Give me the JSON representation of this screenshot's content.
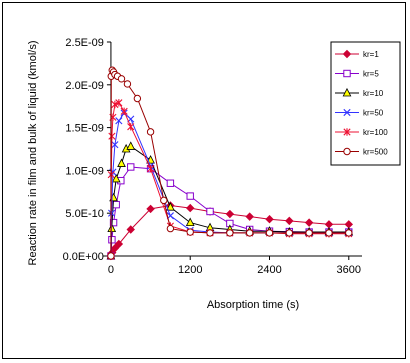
{
  "chart_data": {
    "type": "line",
    "title": "",
    "xlabel": "Absorption time (s)",
    "ylabel": "Reaction rate in film and bulk of liquid (kmol/s)",
    "xlim": [
      -120,
      3800
    ],
    "ylim": [
      0,
      2.5e-09
    ],
    "xticks": [
      0,
      1200,
      2400,
      3600
    ],
    "xtick_labels": [
      "0",
      "1200",
      "2400",
      "3600"
    ],
    "yticks": [
      0,
      5e-10,
      1e-09,
      1.5e-09,
      2e-09,
      2.5e-09
    ],
    "ytick_labels": [
      "0.0E+00",
      "5.0E-10",
      "1.0E-09",
      "1.5E-09",
      "2.0E-09",
      "2.5E-09"
    ],
    "grid": false,
    "legend_position": "top-right",
    "series": [
      {
        "name": "kr=1",
        "color": "#cc0033",
        "marker": "diamond-filled",
        "points": [
          [
            0,
            0
          ],
          [
            20,
            4e-11
          ],
          [
            60,
            9e-11
          ],
          [
            120,
            1.4e-10
          ],
          [
            300,
            3.1e-10
          ],
          [
            600,
            5.5e-10
          ],
          [
            900,
            5.9e-10
          ],
          [
            1200,
            5.6e-10
          ],
          [
            1500,
            5.2e-10
          ],
          [
            1800,
            4.9e-10
          ],
          [
            2100,
            4.6e-10
          ],
          [
            2400,
            4.3e-10
          ],
          [
            2700,
            4.1e-10
          ],
          [
            3000,
            3.9e-10
          ],
          [
            3300,
            3.7e-10
          ],
          [
            3600,
            3.7e-10
          ]
        ]
      },
      {
        "name": "kr=5",
        "color": "#8800cc",
        "marker": "square-open",
        "points": [
          [
            0,
            0
          ],
          [
            15,
            1.9e-10
          ],
          [
            40,
            3.9e-10
          ],
          [
            80,
            6e-10
          ],
          [
            150,
            8.8e-10
          ],
          [
            300,
            1.04e-09
          ],
          [
            600,
            1.02e-09
          ],
          [
            900,
            8.5e-10
          ],
          [
            1200,
            7e-10
          ],
          [
            1500,
            5.2e-10
          ],
          [
            1800,
            3.8e-10
          ],
          [
            2100,
            3.1e-10
          ],
          [
            2400,
            2.9e-10
          ],
          [
            2700,
            2.85e-10
          ],
          [
            3000,
            2.8e-10
          ],
          [
            3300,
            2.8e-10
          ],
          [
            3600,
            2.8e-10
          ]
        ]
      },
      {
        "name": "kr=10",
        "color": "#000000",
        "marker": "triangle-yellow",
        "points": [
          [
            0,
            0
          ],
          [
            12,
            3.2e-10
          ],
          [
            40,
            6.8e-10
          ],
          [
            80,
            9e-10
          ],
          [
            160,
            1.08e-09
          ],
          [
            230,
            1.25e-09
          ],
          [
            300,
            1.28e-09
          ],
          [
            600,
            1.12e-09
          ],
          [
            900,
            5.7e-10
          ],
          [
            1200,
            3.9e-10
          ],
          [
            1500,
            3.3e-10
          ],
          [
            1800,
            3.1e-10
          ],
          [
            2100,
            2.9e-10
          ],
          [
            2400,
            2.9e-10
          ],
          [
            2700,
            2.8e-10
          ],
          [
            3000,
            2.8e-10
          ],
          [
            3300,
            2.8e-10
          ],
          [
            3600,
            2.8e-10
          ]
        ]
      },
      {
        "name": "kr=50",
        "color": "#3333ff",
        "marker": "x",
        "points": [
          [
            0,
            0
          ],
          [
            10,
            5e-10
          ],
          [
            30,
            9.8e-10
          ],
          [
            60,
            1.3e-09
          ],
          [
            120,
            1.58e-09
          ],
          [
            200,
            1.67e-09
          ],
          [
            300,
            1.6e-09
          ],
          [
            600,
            1.05e-09
          ],
          [
            900,
            4.7e-10
          ],
          [
            1200,
            3e-10
          ],
          [
            1500,
            2.8e-10
          ],
          [
            1800,
            2.7e-10
          ],
          [
            2100,
            2.7e-10
          ],
          [
            2400,
            2.7e-10
          ],
          [
            2700,
            2.7e-10
          ],
          [
            3000,
            2.7e-10
          ],
          [
            3300,
            2.7e-10
          ],
          [
            3600,
            2.7e-10
          ]
        ]
      },
      {
        "name": "kr=100",
        "color": "#ee1133",
        "marker": "star",
        "points": [
          [
            0,
            0
          ],
          [
            5,
            9.5e-10
          ],
          [
            15,
            1.4e-09
          ],
          [
            30,
            1.62e-09
          ],
          [
            60,
            1.77e-09
          ],
          [
            120,
            1.79e-09
          ],
          [
            200,
            1.69e-09
          ],
          [
            300,
            1.51e-09
          ],
          [
            600,
            1.02e-09
          ],
          [
            900,
            3.5e-10
          ],
          [
            1200,
            2.8e-10
          ],
          [
            1500,
            2.7e-10
          ],
          [
            1800,
            2.7e-10
          ],
          [
            2100,
            2.7e-10
          ],
          [
            2400,
            2.7e-10
          ],
          [
            2700,
            2.6e-10
          ],
          [
            3000,
            2.6e-10
          ],
          [
            3300,
            2.6e-10
          ],
          [
            3600,
            2.6e-10
          ]
        ]
      },
      {
        "name": "kr=500",
        "color": "#990000",
        "marker": "circle-open",
        "points": [
          [
            0,
            0
          ],
          [
            5,
            2.1e-09
          ],
          [
            20,
            2.17e-09
          ],
          [
            40,
            2.15e-09
          ],
          [
            60,
            2.12e-09
          ],
          [
            100,
            2.1e-09
          ],
          [
            160,
            2.07e-09
          ],
          [
            250,
            2.01e-09
          ],
          [
            400,
            1.84e-09
          ],
          [
            600,
            1.45e-09
          ],
          [
            800,
            6.5e-10
          ],
          [
            900,
            3.2e-10
          ],
          [
            1200,
            2.8e-10
          ],
          [
            1500,
            2.7e-10
          ],
          [
            1800,
            2.7e-10
          ],
          [
            2100,
            2.7e-10
          ],
          [
            2400,
            2.7e-10
          ],
          [
            2700,
            2.7e-10
          ],
          [
            3000,
            2.7e-10
          ],
          [
            3300,
            2.7e-10
          ],
          [
            3600,
            2.7e-10
          ]
        ]
      }
    ]
  }
}
